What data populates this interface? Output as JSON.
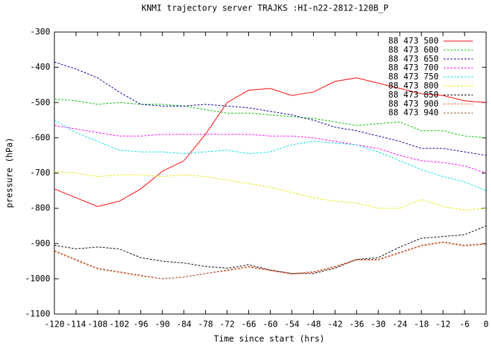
{
  "chart_data": {
    "type": "line",
    "title": "KNMI trajectory server TRAJKS :HI-n22-2812-120B_P",
    "x_label": "Time since start (hrs)",
    "y_label": "pressure (hPa)",
    "x": [
      -120,
      -114,
      -108,
      -102,
      -96,
      -90,
      -84,
      -78,
      -72,
      -66,
      -60,
      -54,
      -48,
      -42,
      -36,
      -30,
      -24,
      -18,
      -12,
      -6,
      0
    ],
    "xlim": [
      -120,
      0
    ],
    "xticks": [
      -120,
      -114,
      -108,
      -102,
      -96,
      -90,
      -84,
      -78,
      -72,
      -66,
      -60,
      -54,
      -48,
      -42,
      -36,
      -30,
      -24,
      -18,
      -12,
      -6,
      0
    ],
    "ylim": [
      -1100,
      -300
    ],
    "yticks": [
      -1100,
      -1000,
      -900,
      -800,
      -700,
      -600,
      -500,
      -400,
      -300
    ],
    "legend": "upper right",
    "series": [
      {
        "name": "88 473 500",
        "color": "#ff0000",
        "values": [
          -745,
          -770,
          -795,
          -780,
          -745,
          -695,
          -665,
          -590,
          -500,
          -465,
          -460,
          -480,
          -470,
          -440,
          -430,
          -445,
          -460,
          -475,
          -480,
          -495,
          -500
        ]
      },
      {
        "name": "88 473 600",
        "color": "#00c000",
        "values": [
          -490,
          -495,
          -505,
          -500,
          -505,
          -505,
          -510,
          -520,
          -530,
          -530,
          -535,
          -540,
          -545,
          -555,
          -565,
          -560,
          -555,
          -580,
          -580,
          -595,
          -600
        ]
      },
      {
        "name": "88 473 650",
        "color": "#0000a0",
        "values": [
          -385,
          -405,
          -430,
          -470,
          -505,
          -510,
          -510,
          -505,
          -510,
          -515,
          -525,
          -535,
          -550,
          -570,
          -580,
          -595,
          -610,
          -630,
          -630,
          -640,
          -650
        ]
      },
      {
        "name": "88 473 700",
        "color": "#ff00ff",
        "values": [
          -565,
          -575,
          -585,
          -595,
          -595,
          -590,
          -590,
          -590,
          -590,
          -590,
          -595,
          -595,
          -600,
          -610,
          -620,
          -630,
          -650,
          -665,
          -670,
          -680,
          -700
        ]
      },
      {
        "name": "88 473 750",
        "color": "#00e0e0",
        "values": [
          -550,
          -585,
          -610,
          -635,
          -640,
          -640,
          -645,
          -640,
          -635,
          -645,
          -640,
          -620,
          -610,
          -615,
          -620,
          -640,
          -665,
          -690,
          -710,
          -725,
          -750
        ]
      },
      {
        "name": "88 473 800",
        "color": "#e8e800",
        "values": [
          -695,
          -700,
          -710,
          -705,
          -705,
          -710,
          -705,
          -710,
          -720,
          -730,
          -740,
          -755,
          -770,
          -780,
          -785,
          -800,
          -800,
          -775,
          -795,
          -805,
          -800
        ]
      },
      {
        "name": "88 473 850",
        "color": "#000000",
        "values": [
          -905,
          -915,
          -910,
          -915,
          -940,
          -950,
          -955,
          -965,
          -970,
          -960,
          -975,
          -985,
          -985,
          -970,
          -945,
          -940,
          -910,
          -885,
          -880,
          -875,
          -850
        ]
      },
      {
        "name": "88 473 900",
        "color": "#ff6030",
        "values": [
          -922,
          -948,
          -972,
          -982,
          -992,
          -1000,
          -995,
          -985,
          -977,
          -967,
          -977,
          -987,
          -982,
          -967,
          -947,
          -947,
          -927,
          -907,
          -897,
          -907,
          -902
        ]
      },
      {
        "name": "88 473 940",
        "color": "#a0522d",
        "values": [
          -920,
          -945,
          -970,
          -980,
          -990,
          -1000,
          -995,
          -985,
          -975,
          -965,
          -975,
          -985,
          -980,
          -965,
          -945,
          -945,
          -925,
          -905,
          -895,
          -905,
          -900
        ]
      }
    ]
  }
}
